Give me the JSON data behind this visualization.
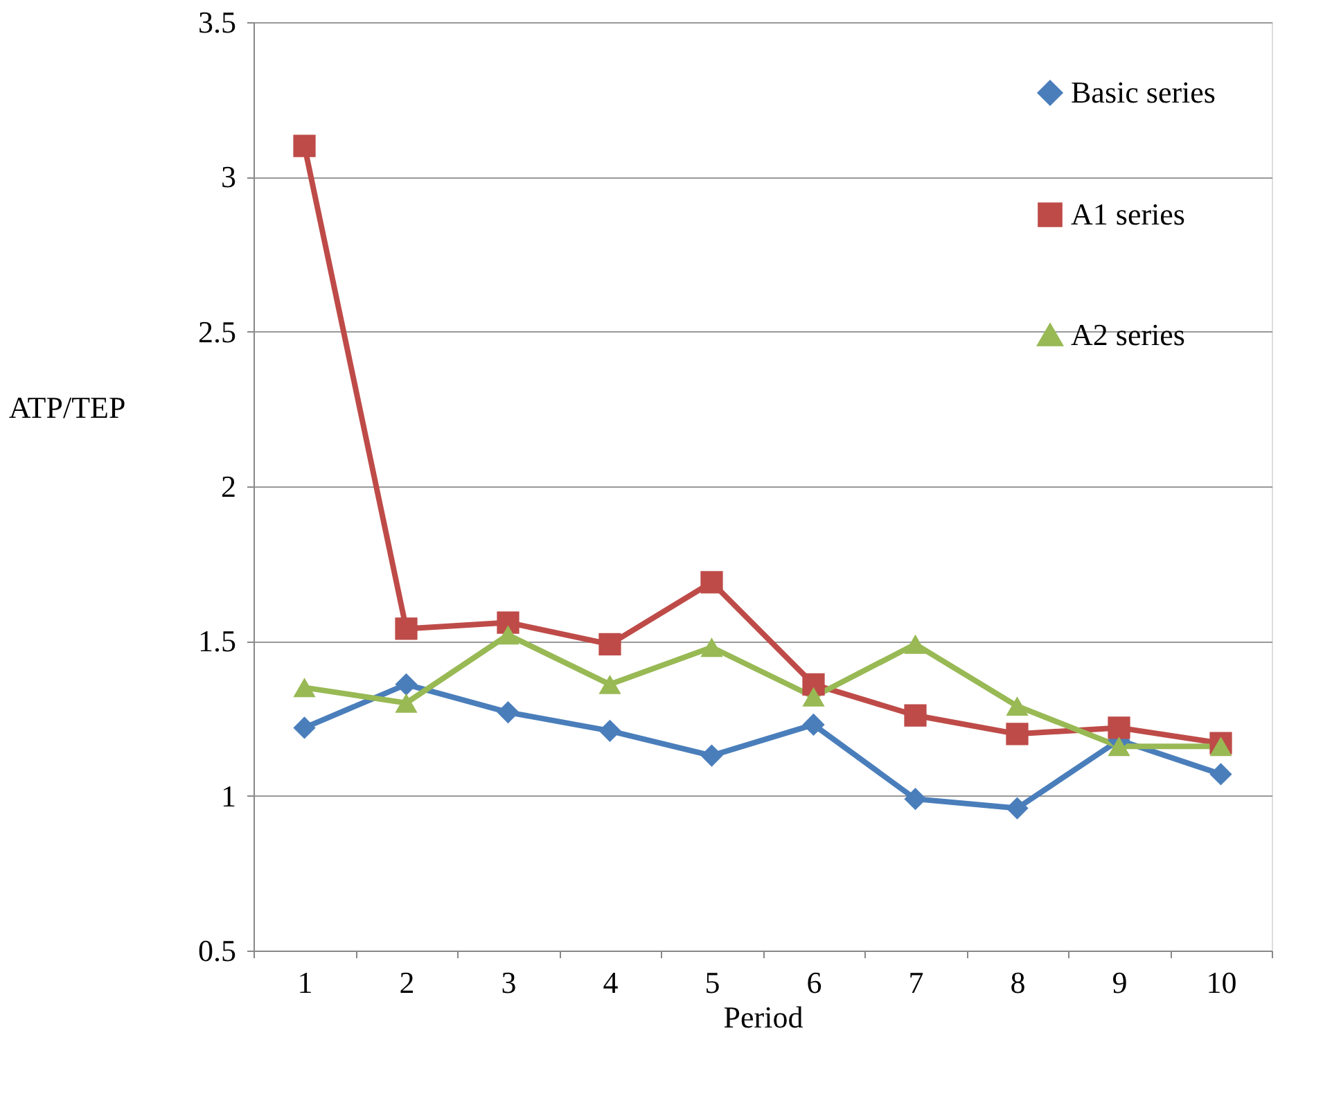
{
  "chart_data": {
    "type": "line",
    "xlabel": "Period",
    "ylabel": "ATP/TEP",
    "categories": [
      "1",
      "2",
      "3",
      "4",
      "5",
      "6",
      "7",
      "8",
      "9",
      "10"
    ],
    "series": [
      {
        "name": "Basic series",
        "color": "#4a7ebb",
        "marker": "diamond",
        "values": [
          1.22,
          1.36,
          1.27,
          1.21,
          1.13,
          1.23,
          0.99,
          0.96,
          1.18,
          1.07
        ]
      },
      {
        "name": "A1 series",
        "color": "#be4b48",
        "marker": "square",
        "values": [
          3.1,
          1.54,
          1.56,
          1.49,
          1.69,
          1.36,
          1.26,
          1.2,
          1.22,
          1.17
        ]
      },
      {
        "name": "A2 series",
        "color": "#98b954",
        "marker": "triangle",
        "values": [
          1.35,
          1.3,
          1.52,
          1.36,
          1.48,
          1.32,
          1.49,
          1.29,
          1.16,
          1.16
        ]
      }
    ],
    "ylim": [
      0.5,
      3.5
    ],
    "yticks": [
      0.5,
      1,
      1.5,
      2,
      2.5,
      3,
      3.5
    ],
    "grid": "y",
    "legend": "top right",
    "line_style": "solid"
  }
}
